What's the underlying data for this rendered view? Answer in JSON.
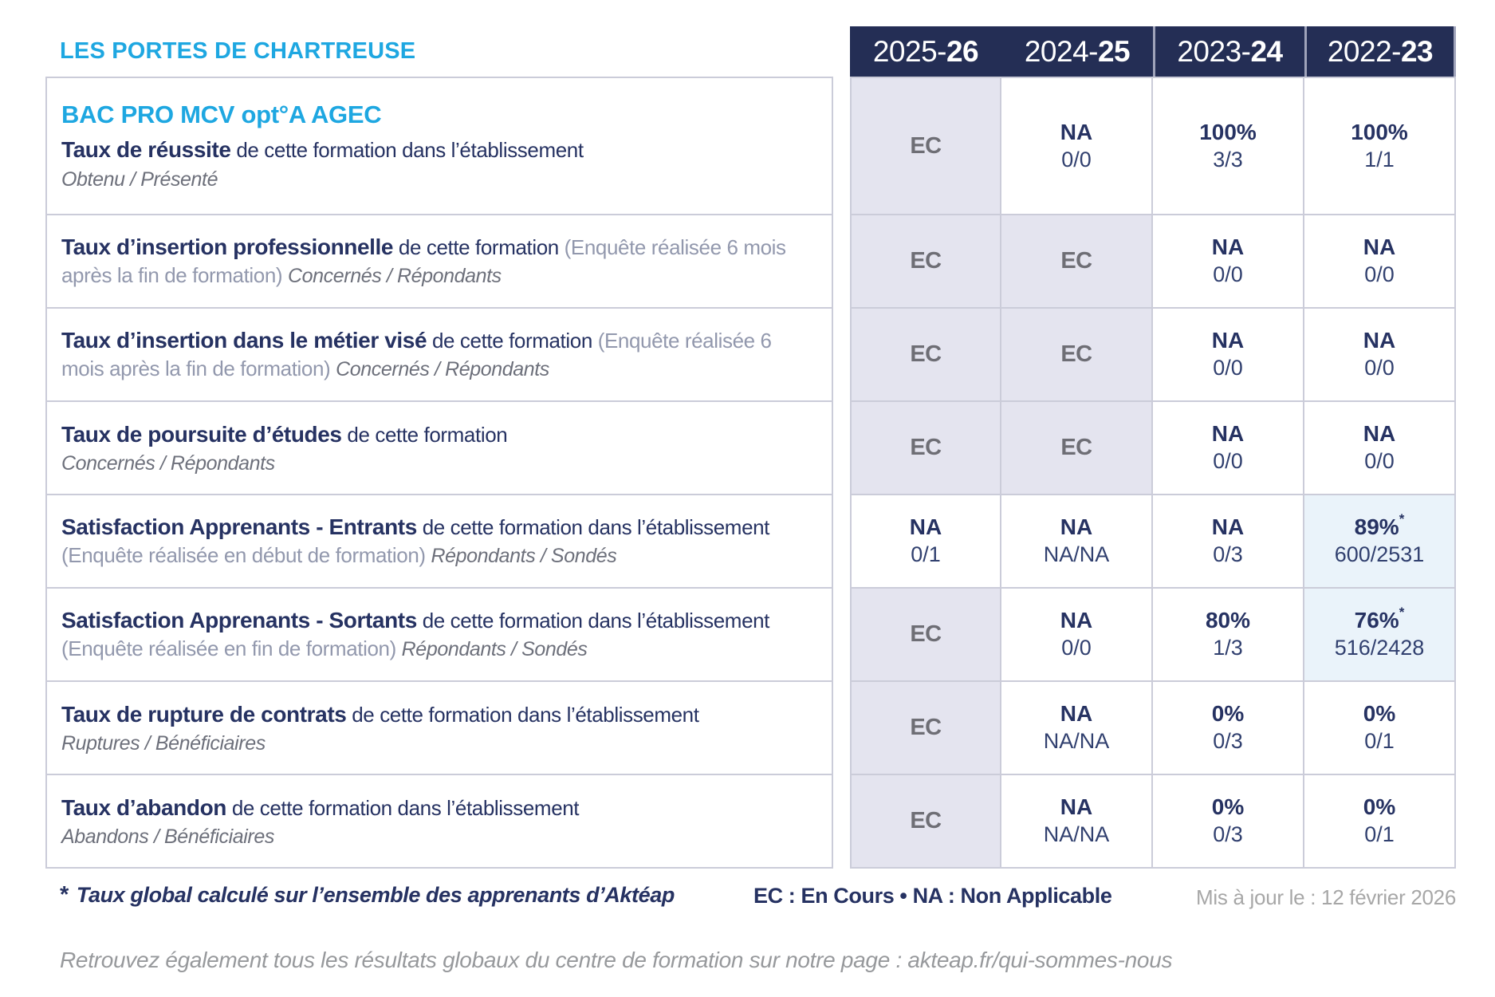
{
  "brand": "LES PORTES DE CHARTREUSE",
  "colors": {
    "accent_cyan": "#1ea7e1",
    "navy_text": "#263262",
    "header_bg": "#242e55",
    "cell_lavender": "#e4e4ef",
    "cell_light_blue": "#eaf3fa",
    "border": "#cbccd9",
    "gray_text": "#9298ad",
    "ec_gray": "#6e6e75"
  },
  "columns": [
    {
      "prefix": "2025-",
      "bold": "26"
    },
    {
      "prefix": "2024-",
      "bold": "25"
    },
    {
      "prefix": "2023-",
      "bold": "24"
    },
    {
      "prefix": "2022-",
      "bold": "23"
    }
  ],
  "rows": [
    {
      "program": "BAC PRO MCV opt°A AGEC",
      "title": "Taux de réussite",
      "desc": " de cette formation dans l’établissement",
      "subtitle": "Obtenu / Présenté",
      "block": true,
      "cells": [
        {
          "v": "EC",
          "ec": true,
          "bg": "lav"
        },
        {
          "v": "NA",
          "f": "0/0",
          "bg": "w"
        },
        {
          "v": "100%",
          "f": "3/3",
          "bg": "w"
        },
        {
          "v": "100%",
          "f": "1/1",
          "bg": "w"
        }
      ]
    },
    {
      "title": "Taux d’insertion professionnelle",
      "desc": " de cette formation ",
      "paren": "(Enquête réalisée 6 mois après la fin de formation) ",
      "subtitle": "Concernés / Répondants",
      "block": false,
      "cells": [
        {
          "v": "EC",
          "ec": true,
          "bg": "lav"
        },
        {
          "v": "EC",
          "ec": true,
          "bg": "lav"
        },
        {
          "v": "NA",
          "f": "0/0",
          "bg": "w"
        },
        {
          "v": "NA",
          "f": "0/0",
          "bg": "w"
        }
      ]
    },
    {
      "title": "Taux d’insertion dans le métier visé",
      "desc": " de cette formation ",
      "paren": "(Enquête réalisée 6 mois après la fin de formation) ",
      "subtitle": "Concernés / Répondants",
      "block": false,
      "cells": [
        {
          "v": "EC",
          "ec": true,
          "bg": "lav"
        },
        {
          "v": "EC",
          "ec": true,
          "bg": "lav"
        },
        {
          "v": "NA",
          "f": "0/0",
          "bg": "w"
        },
        {
          "v": "NA",
          "f": "0/0",
          "bg": "w"
        }
      ]
    },
    {
      "title": "Taux de poursuite d’études",
      "desc": " de cette formation",
      "subtitle": "Concernés / Répondants",
      "block": true,
      "cells": [
        {
          "v": "EC",
          "ec": true,
          "bg": "lav"
        },
        {
          "v": "EC",
          "ec": true,
          "bg": "lav"
        },
        {
          "v": "NA",
          "f": "0/0",
          "bg": "w"
        },
        {
          "v": "NA",
          "f": "0/0",
          "bg": "w"
        }
      ]
    },
    {
      "title": "Satisfaction Apprenants - Entrants",
      "desc": " de cette formation dans l’établissement ",
      "paren": "(Enquête réalisée en début de formation) ",
      "subtitle": "Répondants / Sondés",
      "block": false,
      "cells": [
        {
          "v": "NA",
          "f": "0/1",
          "bg": "w"
        },
        {
          "v": "NA",
          "f": "NA/NA",
          "bg": "w"
        },
        {
          "v": "NA",
          "f": "0/3",
          "bg": "w"
        },
        {
          "v": "89%",
          "star": "*",
          "f": "600/2531",
          "bg": "blue"
        }
      ]
    },
    {
      "title": "Satisfaction Apprenants - Sortants",
      "desc": " de cette formation dans l’établissement ",
      "paren": "(Enquête réalisée en fin de formation) ",
      "subtitle": "Répondants / Sondés",
      "block": false,
      "cells": [
        {
          "v": "EC",
          "ec": true,
          "bg": "lav"
        },
        {
          "v": "NA",
          "f": "0/0",
          "bg": "w"
        },
        {
          "v": "80%",
          "f": "1/3",
          "bg": "w"
        },
        {
          "v": "76%",
          "star": "*",
          "f": "516/2428",
          "bg": "blue"
        }
      ]
    },
    {
      "title": "Taux de rupture de contrats",
      "desc": " de cette formation dans l’établissement",
      "subtitle": "Ruptures / Bénéficiaires",
      "block": true,
      "cells": [
        {
          "v": "EC",
          "ec": true,
          "bg": "lav"
        },
        {
          "v": "NA",
          "f": "NA/NA",
          "bg": "w"
        },
        {
          "v": "0%",
          "f": "0/3",
          "bg": "w"
        },
        {
          "v": "0%",
          "f": "0/1",
          "bg": "w"
        }
      ]
    },
    {
      "title": "Taux d’abandon",
      "desc": " de cette formation dans l’établissement",
      "subtitle": "Abandons / Bénéficiaires",
      "block": true,
      "cells": [
        {
          "v": "EC",
          "ec": true,
          "bg": "lav"
        },
        {
          "v": "NA",
          "f": "NA/NA",
          "bg": "w"
        },
        {
          "v": "0%",
          "f": "0/3",
          "bg": "w"
        },
        {
          "v": "0%",
          "f": "0/1",
          "bg": "w"
        }
      ]
    }
  ],
  "footer": {
    "footnote_star": "*",
    "footnote_text": "Taux global calculé sur l’ensemble des apprenants d’Aktéap",
    "legend": "EC : En Cours  •  NA : Non Applicable",
    "updated": "Mis à jour le : 12 février 2026",
    "bottom_note": "Retrouvez également tous les résultats globaux du centre de formation sur notre page : ",
    "bottom_url": "akteap.fr/qui-sommes-nous"
  }
}
